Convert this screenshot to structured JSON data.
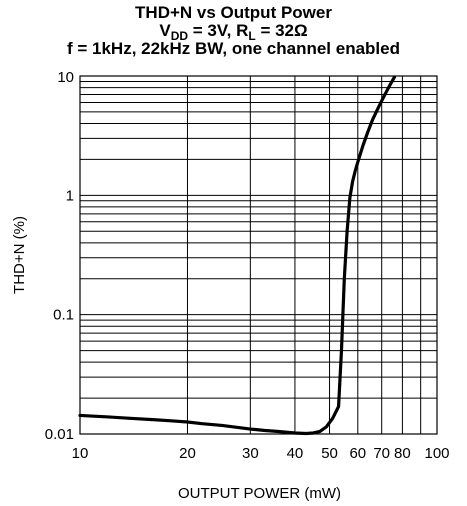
{
  "title": {
    "line1": "THD+N vs Output Power",
    "line2": {
      "v_main": "V",
      "v_sub": "DD",
      "v_rest": " = 3V, R",
      "r_sub": "L",
      "r_rest": " = 32Ω"
    },
    "line3": "f = 1kHz, 22kHz BW, one channel enabled"
  },
  "chart_data": {
    "type": "line",
    "title": "THD+N vs Output Power",
    "xlabel": "OUTPUT POWER (mW)",
    "ylabel": "THD+N (%)",
    "x_scale": "log",
    "y_scale": "log",
    "xlim": [
      10,
      100
    ],
    "ylim": [
      0.01,
      10
    ],
    "x_ticks": [
      10,
      20,
      30,
      40,
      50,
      60,
      70,
      80,
      100
    ],
    "x_tick_labels": [
      "10",
      "20",
      "30",
      "40",
      "50",
      "60",
      "70",
      "80",
      "100"
    ],
    "y_ticks": [
      0.01,
      0.1,
      1,
      10
    ],
    "y_tick_labels": [
      "0.01",
      "0.1",
      "1",
      "10"
    ],
    "grid": true,
    "line_color": "#000000",
    "series": [
      {
        "x": [
          10,
          12,
          14,
          16,
          18,
          20,
          22,
          25,
          28,
          30,
          33,
          36,
          40,
          43,
          45,
          47,
          49,
          51,
          53,
          54,
          55,
          56,
          57,
          58,
          59,
          60,
          62,
          64,
          66,
          68,
          70,
          72,
          74,
          76
        ],
        "y": [
          0.0143,
          0.0139,
          0.0135,
          0.0132,
          0.0129,
          0.0126,
          0.0122,
          0.0118,
          0.0113,
          0.011,
          0.0107,
          0.0105,
          0.0102,
          0.0101,
          0.0102,
          0.0105,
          0.0115,
          0.0135,
          0.017,
          0.05,
          0.2,
          0.5,
          0.95,
          1.3,
          1.6,
          1.9,
          2.6,
          3.4,
          4.3,
          5.2,
          6.2,
          7.3,
          8.5,
          9.8
        ]
      }
    ]
  }
}
